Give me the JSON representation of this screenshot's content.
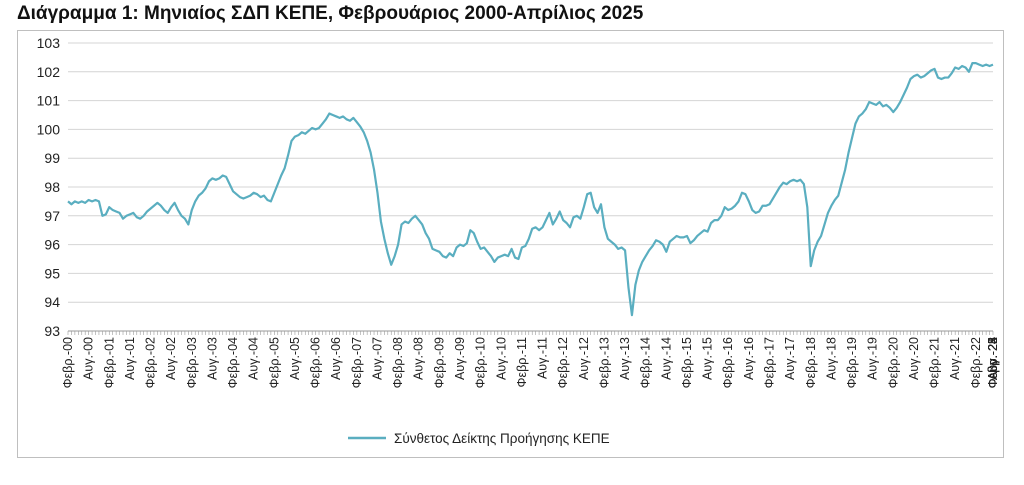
{
  "chart_data": {
    "type": "line",
    "title": "Διάγραμμα 1: Μηνιαίος ΣΔΠ ΚΕΠΕ, Φεβρουάριος 2000-Απρίλιος 2025",
    "xlabel": "",
    "ylabel": "",
    "ylim": [
      93,
      103
    ],
    "yticks": [
      93,
      94,
      95,
      96,
      97,
      98,
      99,
      100,
      101,
      102,
      103
    ],
    "grid": true,
    "legend_position": "bottom",
    "x_tick_labels": [
      "Φεβρ.-00",
      "Αυγ.-00",
      "Φεβρ.-01",
      "Αυγ.-01",
      "Φεβρ.-02",
      "Αυγ.-02",
      "Φεβρ.-03",
      "Αυγ.-03",
      "Φεβρ.-04",
      "Αυγ.-04",
      "Φεβρ.-05",
      "Αυγ.-05",
      "Φεβρ.-06",
      "Αυγ.-06",
      "Φεβρ.-07",
      "Αυγ.-07",
      "Φεβρ.-08",
      "Αυγ.-08",
      "Φεβρ.-09",
      "Αυγ.-09",
      "Φεβρ.-10",
      "Αυγ.-10",
      "Φεβρ.-11",
      "Αυγ.-11",
      "Φεβρ.-12",
      "Αυγ.-12",
      "Φεβρ.-13",
      "Αυγ.-13",
      "Φεβρ.-14",
      "Αυγ.-14",
      "Φεβρ.-15",
      "Αυγ.-15",
      "Φεβρ.-16",
      "Αυγ.-16",
      "Φεβρ.-17",
      "Αυγ.-17",
      "Φεβρ.-18",
      "Αυγ.-18",
      "Φεβρ.-19",
      "Αυγ.-19",
      "Φεβρ.-20",
      "Αυγ.-20",
      "Φεβρ.-21",
      "Αυγ.-21",
      "Φεβρ.-22",
      "Αυγ.-22",
      "Φεβρ.-23",
      "Αυγ.-23",
      "Φεβρ.-24",
      "Αυγ.-24",
      "Φεβρ.-25"
    ],
    "series": [
      {
        "name": "Σύνθετος Δείκτης Προήγησης ΚΕΠΕ",
        "color": "#5aaec0",
        "values": [
          97.5,
          97.4,
          97.5,
          97.45,
          97.5,
          97.45,
          97.55,
          97.5,
          97.55,
          97.5,
          97.0,
          97.05,
          97.3,
          97.2,
          97.15,
          97.1,
          96.9,
          97.0,
          97.05,
          97.1,
          96.95,
          96.9,
          97.0,
          97.15,
          97.25,
          97.35,
          97.45,
          97.35,
          97.2,
          97.1,
          97.3,
          97.45,
          97.2,
          97.0,
          96.9,
          96.7,
          97.2,
          97.5,
          97.7,
          97.8,
          97.95,
          98.2,
          98.3,
          98.25,
          98.3,
          98.4,
          98.35,
          98.1,
          97.85,
          97.75,
          97.65,
          97.6,
          97.65,
          97.7,
          97.8,
          97.75,
          97.65,
          97.7,
          97.55,
          97.5,
          97.8,
          98.1,
          98.4,
          98.65,
          99.1,
          99.6,
          99.75,
          99.8,
          99.9,
          99.85,
          99.95,
          100.05,
          100.0,
          100.05,
          100.2,
          100.35,
          100.55,
          100.5,
          100.45,
          100.4,
          100.45,
          100.35,
          100.3,
          100.4,
          100.25,
          100.1,
          99.9,
          99.6,
          99.2,
          98.6,
          97.8,
          96.8,
          96.2,
          95.7,
          95.3,
          95.6,
          96.0,
          96.7,
          96.8,
          96.75,
          96.9,
          97.0,
          96.85,
          96.7,
          96.4,
          96.2,
          95.85,
          95.8,
          95.75,
          95.6,
          95.55,
          95.7,
          95.6,
          95.9,
          96.0,
          95.95,
          96.05,
          96.5,
          96.4,
          96.1,
          95.85,
          95.9,
          95.75,
          95.6,
          95.4,
          95.55,
          95.6,
          95.65,
          95.6,
          95.85,
          95.55,
          95.5,
          95.9,
          95.95,
          96.2,
          96.55,
          96.6,
          96.5,
          96.6,
          96.85,
          97.1,
          96.7,
          96.9,
          97.15,
          96.85,
          96.75,
          96.6,
          96.95,
          97.0,
          96.9,
          97.3,
          97.75,
          97.8,
          97.3,
          97.1,
          97.4,
          96.6,
          96.2,
          96.1,
          96.0,
          95.85,
          95.9,
          95.8,
          94.5,
          93.55,
          94.6,
          95.1,
          95.4,
          95.6,
          95.8,
          95.95,
          96.15,
          96.1,
          96.0,
          95.75,
          96.1,
          96.2,
          96.3,
          96.25,
          96.25,
          96.3,
          96.05,
          96.15,
          96.3,
          96.4,
          96.5,
          96.45,
          96.75,
          96.85,
          96.85,
          97.0,
          97.3,
          97.2,
          97.25,
          97.35,
          97.5,
          97.8,
          97.75,
          97.5,
          97.2,
          97.1,
          97.15,
          97.35,
          97.35,
          97.4,
          97.6,
          97.8,
          98.0,
          98.15,
          98.1,
          98.2,
          98.25,
          98.2,
          98.25,
          98.1,
          97.3,
          95.25,
          95.8,
          96.1,
          96.3,
          96.7,
          97.1,
          97.35,
          97.55,
          97.7,
          98.15,
          98.6,
          99.2,
          99.7,
          100.2,
          100.45,
          100.55,
          100.7,
          100.95,
          100.9,
          100.85,
          100.95,
          100.8,
          100.85,
          100.75,
          100.6,
          100.75,
          100.95,
          101.2,
          101.45,
          101.75,
          101.85,
          101.9,
          101.8,
          101.85,
          101.95,
          102.05,
          102.1,
          101.8,
          101.75,
          101.8,
          101.8,
          101.95,
          102.15,
          102.1,
          102.2,
          102.15,
          102.0,
          102.3,
          102.3,
          102.25,
          102.2,
          102.25,
          102.2,
          102.25
        ]
      }
    ]
  }
}
